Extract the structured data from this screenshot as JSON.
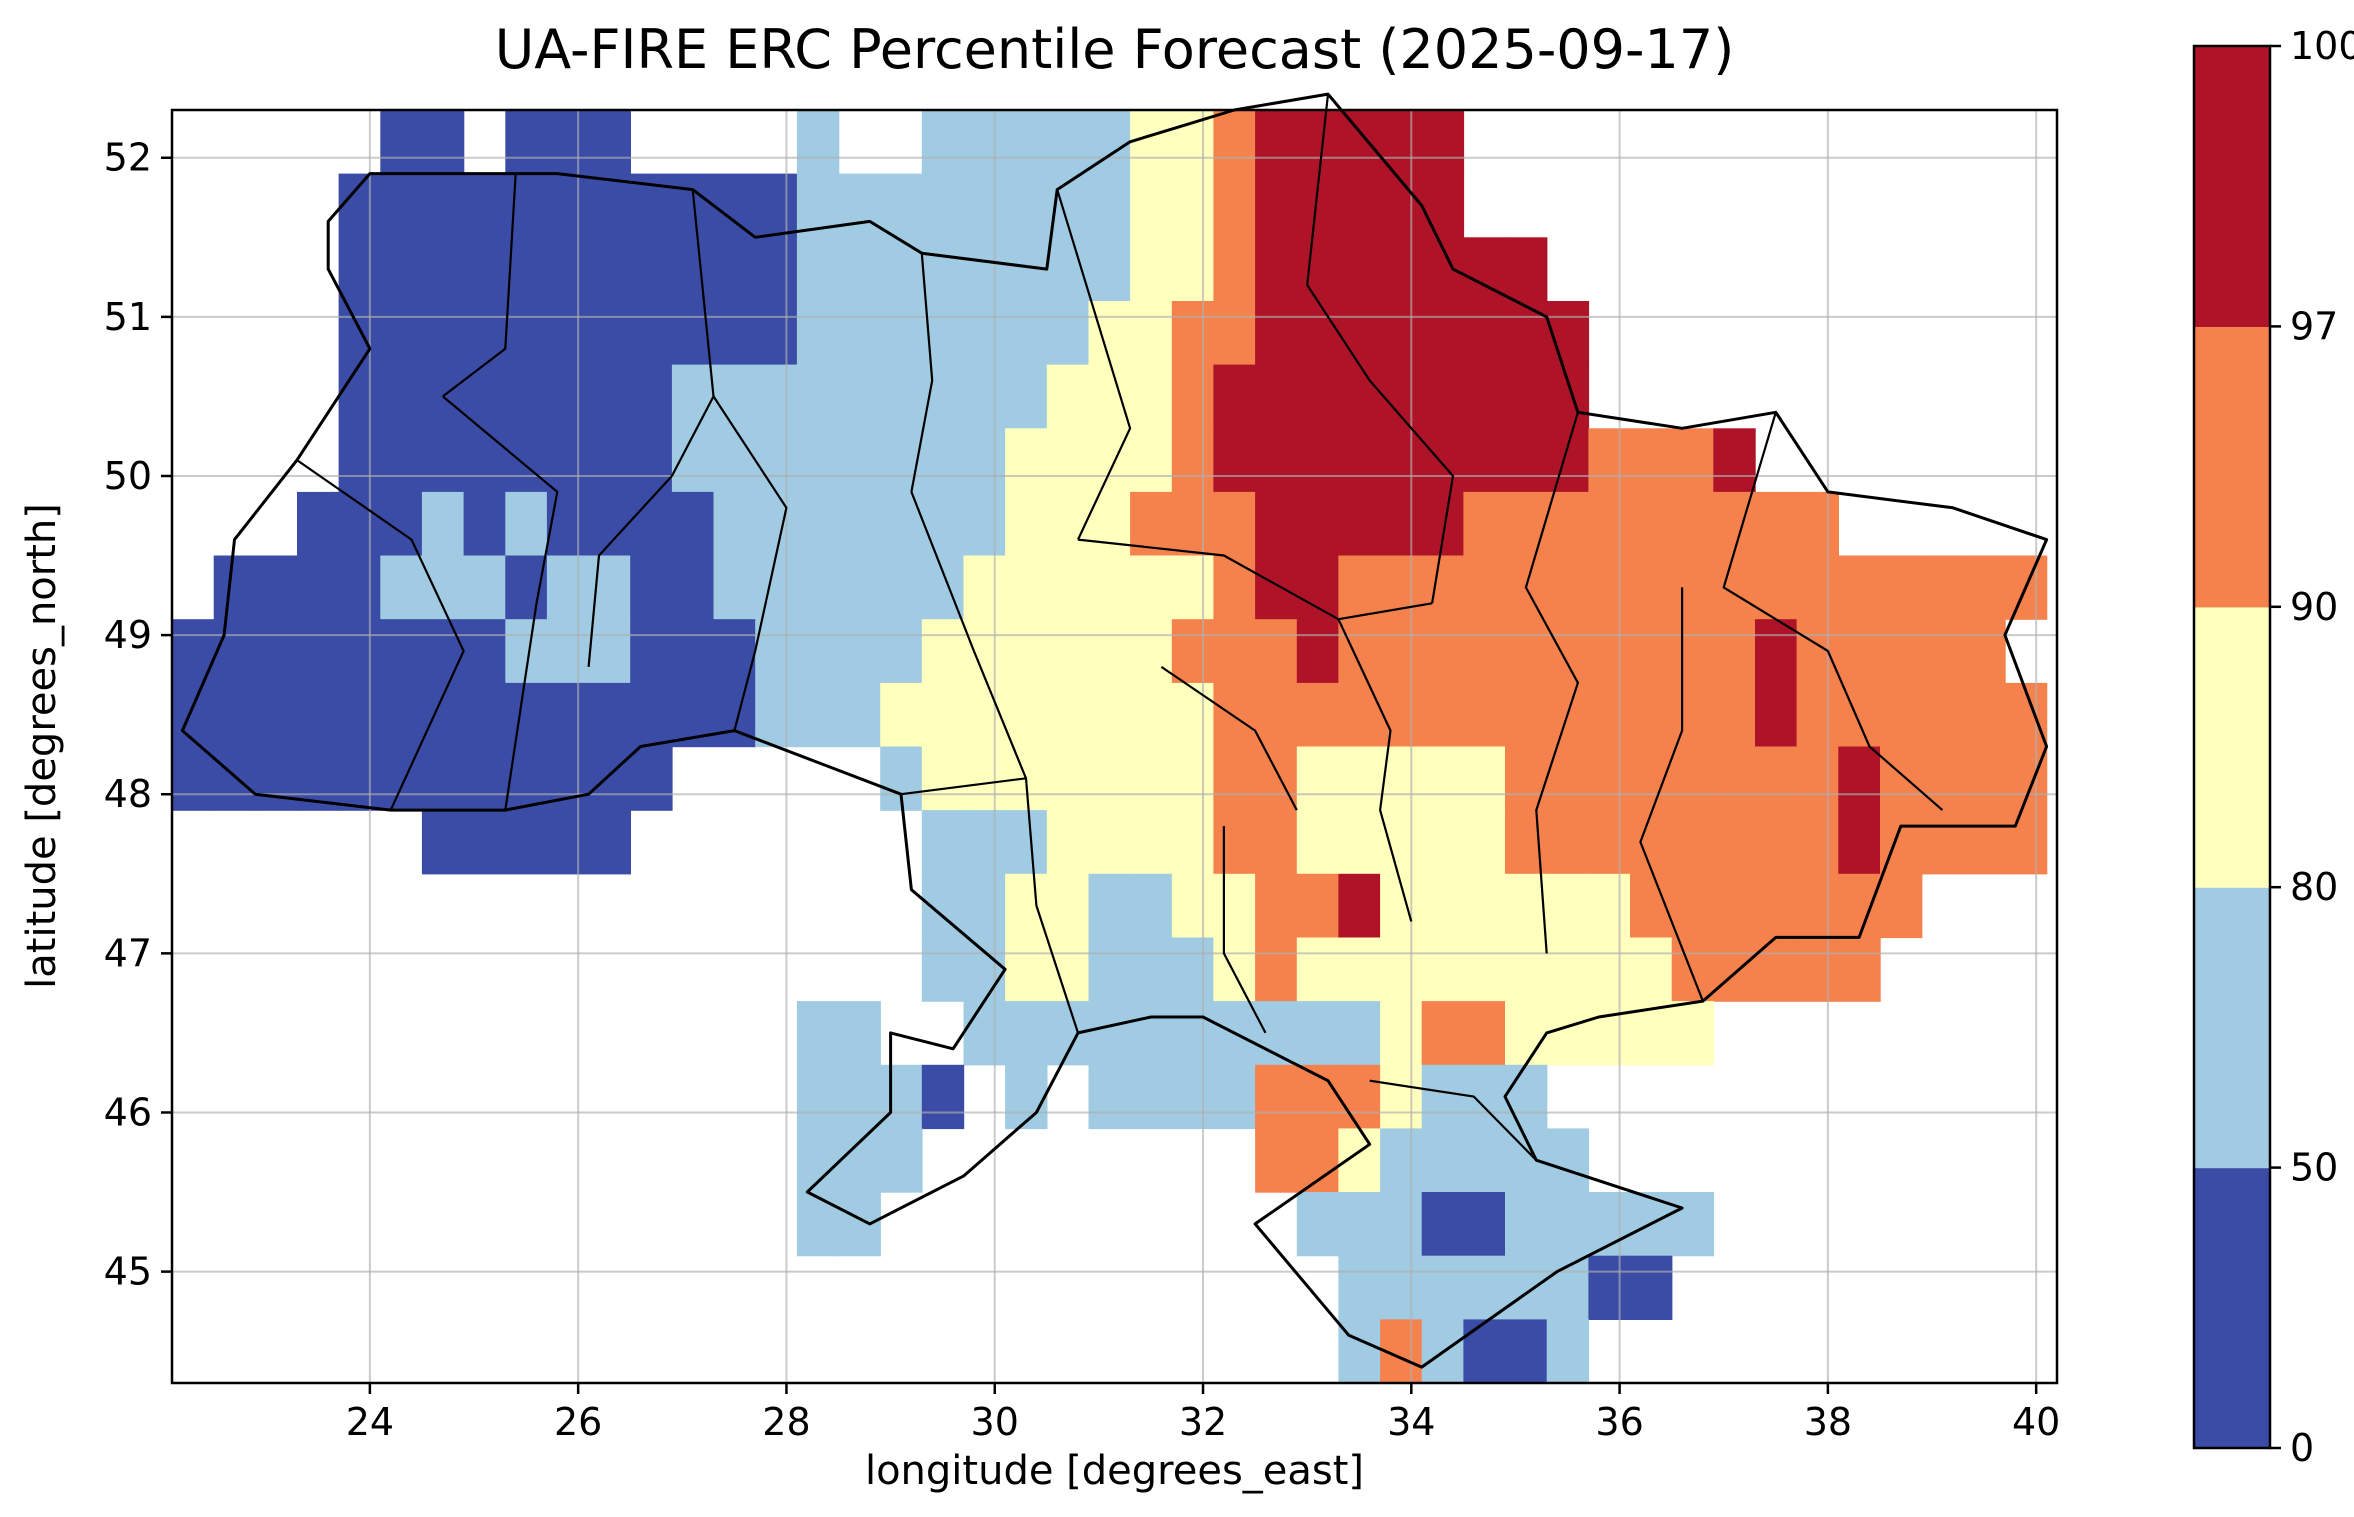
{
  "chart_data": {
    "type": "heatmap",
    "title": "UA-FIRE ERC Percentile Forecast (2025-09-17)",
    "xlabel": "longitude [degrees_east]",
    "ylabel": "latitude [degrees_north]",
    "xlim": [
      22.1,
      40.2
    ],
    "ylim": [
      44.3,
      52.3
    ],
    "xticks": [
      24,
      26,
      28,
      30,
      32,
      34,
      36,
      38,
      40
    ],
    "yticks": [
      45,
      46,
      47,
      48,
      49,
      50,
      51,
      52
    ],
    "grid": true,
    "grid_color": "#b0b0b0",
    "background": "#ffffff",
    "cell_size_deg": {
      "lon": 0.4,
      "lat": 0.4
    },
    "origin": {
      "lon_min": 22.1,
      "lat_max": 52.3
    },
    "classes": [
      {
        "code": "1",
        "range": "0-50",
        "color": "#3A4CA6"
      },
      {
        "code": "2",
        "range": "50-80",
        "color": "#A0CBE2"
      },
      {
        "code": "3",
        "range": "80-90",
        "color": "#FFFFBE"
      },
      {
        "code": "4",
        "range": "90-97",
        "color": "#F5814D"
      },
      {
        "code": "5",
        "range": "97-100",
        "color": "#AF1328"
      }
    ],
    "colorbar": {
      "position": "right",
      "boundaries": [
        0,
        50,
        80,
        90,
        97,
        100
      ],
      "tick_labels": [
        "0",
        "50",
        "80",
        "90",
        "97",
        "100"
      ]
    },
    "values_grid": [
      "000001101110000200222223345555500000000000000",
      "000011111111111222222223345555500000000000000",
      "000011111111111222222223345555555000000000000",
      "000011111111111222222233445555555500000000000",
      "000011111111222222222333455555555500000000000",
      "000011111111222222223333455555555544450000000",
      "000111212111122222223334445555544444444400000",
      "011112221221122222233333345544444444444444444",
      "111111112221112222333333444544444444445444440",
      "111111111111112223333333344444444444445444444",
      "111111111111000002333333344333334444444454444",
      "000000111110000000222333344333334444444454444",
      "000000000000000000223322334453333334444444000",
      "000000000000000000223322234333333333444440000",
      "000000000000000220022222222223443333300000000",
      "000000000000000222102022224443222000000000000",
      "000000000000000222000000004432222200000000000",
      "000000000000000220000000000222112222200000000",
      "000000000000000000000000000022222211000000000",
      "000000000000000000000000000024211200000000000"
    ],
    "country_outline": [
      [
        22.2,
        48.4
      ],
      [
        22.6,
        49.0
      ],
      [
        22.7,
        49.6
      ],
      [
        23.3,
        50.1
      ],
      [
        24.0,
        50.8
      ],
      [
        23.6,
        51.3
      ],
      [
        23.6,
        51.6
      ],
      [
        24.0,
        51.9
      ],
      [
        25.8,
        51.9
      ],
      [
        27.1,
        51.8
      ],
      [
        27.7,
        51.5
      ],
      [
        28.8,
        51.6
      ],
      [
        29.3,
        51.4
      ],
      [
        30.5,
        51.3
      ],
      [
        30.6,
        51.8
      ],
      [
        31.3,
        52.1
      ],
      [
        32.3,
        52.3
      ],
      [
        33.2,
        52.4
      ],
      [
        34.1,
        51.7
      ],
      [
        34.4,
        51.3
      ],
      [
        35.3,
        51.0
      ],
      [
        35.6,
        50.4
      ],
      [
        36.6,
        50.3
      ],
      [
        37.5,
        50.4
      ],
      [
        38.0,
        49.9
      ],
      [
        39.2,
        49.8
      ],
      [
        40.1,
        49.6
      ],
      [
        39.7,
        49.0
      ],
      [
        40.1,
        48.3
      ],
      [
        39.8,
        47.8
      ],
      [
        38.7,
        47.8
      ],
      [
        38.3,
        47.1
      ],
      [
        37.5,
        47.1
      ],
      [
        36.8,
        46.7
      ],
      [
        35.8,
        46.6
      ],
      [
        35.3,
        46.5
      ],
      [
        34.9,
        46.1
      ],
      [
        35.2,
        45.7
      ],
      [
        36.6,
        45.4
      ],
      [
        35.4,
        45.0
      ],
      [
        34.1,
        44.4
      ],
      [
        33.4,
        44.6
      ],
      [
        32.5,
        45.3
      ],
      [
        33.6,
        45.8
      ],
      [
        33.2,
        46.2
      ],
      [
        32.0,
        46.6
      ],
      [
        31.5,
        46.6
      ],
      [
        30.8,
        46.5
      ],
      [
        30.4,
        46.0
      ],
      [
        29.7,
        45.6
      ],
      [
        28.8,
        45.3
      ],
      [
        28.2,
        45.5
      ],
      [
        29.0,
        46.0
      ],
      [
        29.0,
        46.5
      ],
      [
        29.6,
        46.4
      ],
      [
        30.1,
        46.9
      ],
      [
        29.2,
        47.4
      ],
      [
        29.1,
        48.0
      ],
      [
        28.3,
        48.2
      ],
      [
        27.5,
        48.4
      ],
      [
        26.6,
        48.3
      ],
      [
        26.1,
        48.0
      ],
      [
        25.3,
        47.9
      ],
      [
        24.2,
        47.9
      ],
      [
        22.9,
        48.0
      ],
      [
        22.2,
        48.4
      ]
    ],
    "admin_boundaries": [
      [
        [
          25.4,
          51.9
        ],
        [
          25.3,
          50.8
        ],
        [
          24.7,
          50.5
        ]
      ],
      [
        [
          27.1,
          51.8
        ],
        [
          27.3,
          50.5
        ],
        [
          26.9,
          50.0
        ]
      ],
      [
        [
          29.3,
          51.4
        ],
        [
          29.4,
          50.6
        ],
        [
          29.2,
          49.9
        ]
      ],
      [
        [
          30.6,
          51.8
        ],
        [
          31.3,
          50.3
        ],
        [
          30.8,
          49.6
        ]
      ],
      [
        [
          33.2,
          52.4
        ],
        [
          33.0,
          51.2
        ],
        [
          33.6,
          50.6
        ],
        [
          34.4,
          50.0
        ],
        [
          34.2,
          49.2
        ]
      ],
      [
        [
          35.6,
          50.4
        ],
        [
          35.1,
          49.3
        ],
        [
          35.6,
          48.7
        ],
        [
          35.2,
          47.9
        ],
        [
          35.3,
          47.0
        ]
      ],
      [
        [
          37.5,
          50.4
        ],
        [
          37.0,
          49.3
        ],
        [
          38.0,
          48.9
        ],
        [
          38.4,
          48.3
        ],
        [
          39.1,
          47.9
        ]
      ],
      [
        [
          36.6,
          49.3
        ],
        [
          36.6,
          48.4
        ],
        [
          36.2,
          47.7
        ],
        [
          36.8,
          46.7
        ]
      ],
      [
        [
          33.3,
          49.1
        ],
        [
          33.8,
          48.4
        ],
        [
          33.7,
          47.9
        ],
        [
          34.0,
          47.2
        ]
      ],
      [
        [
          30.8,
          49.6
        ],
        [
          32.2,
          49.5
        ],
        [
          33.3,
          49.1
        ]
      ],
      [
        [
          27.3,
          50.5
        ],
        [
          28.0,
          49.8
        ],
        [
          27.7,
          48.9
        ],
        [
          27.5,
          48.4
        ]
      ],
      [
        [
          26.9,
          50.0
        ],
        [
          26.2,
          49.5
        ],
        [
          26.1,
          48.8
        ]
      ],
      [
        [
          24.7,
          50.5
        ],
        [
          25.8,
          49.9
        ],
        [
          25.6,
          49.2
        ],
        [
          25.3,
          47.9
        ]
      ],
      [
        [
          23.3,
          50.1
        ],
        [
          24.4,
          49.6
        ],
        [
          24.9,
          48.9
        ],
        [
          24.2,
          47.9
        ]
      ],
      [
        [
          29.2,
          49.9
        ],
        [
          29.8,
          48.9
        ],
        [
          30.3,
          48.1
        ],
        [
          30.4,
          47.3
        ],
        [
          30.8,
          46.5
        ]
      ],
      [
        [
          32.2,
          47.8
        ],
        [
          32.2,
          47.0
        ],
        [
          32.6,
          46.5
        ]
      ],
      [
        [
          33.6,
          46.2
        ],
        [
          34.6,
          46.1
        ],
        [
          35.2,
          45.7
        ]
      ],
      [
        [
          31.6,
          48.8
        ],
        [
          32.5,
          48.4
        ],
        [
          32.9,
          47.9
        ]
      ],
      [
        [
          29.1,
          48.0
        ],
        [
          30.3,
          48.1
        ]
      ],
      [
        [
          34.2,
          49.2
        ],
        [
          33.3,
          49.1
        ]
      ]
    ]
  }
}
